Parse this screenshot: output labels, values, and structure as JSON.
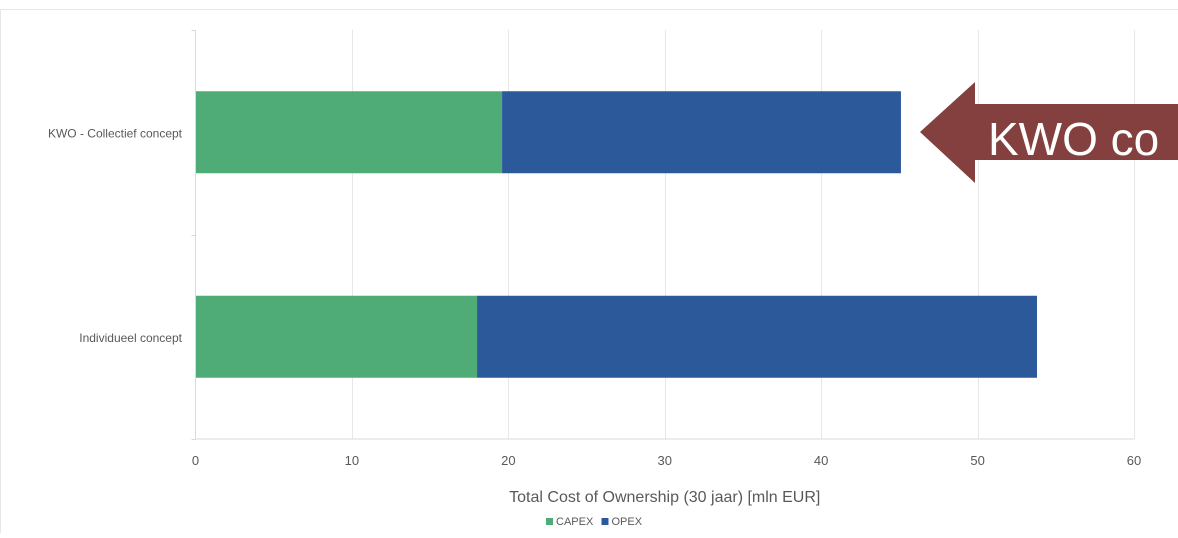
{
  "chart_data": {
    "type": "bar",
    "orientation": "horizontal",
    "stacked": true,
    "categories": [
      "KWO - Collectief concept",
      "Individueel concept"
    ],
    "series": [
      {
        "name": "CAPEX",
        "values": [
          19.6,
          18.0
        ],
        "color": "#4fac76"
      },
      {
        "name": "OPEX",
        "values": [
          25.5,
          35.8
        ],
        "color": "#2c5999"
      }
    ],
    "xlabel": "Total Cost of Ownership (30 jaar)  [mln EUR]",
    "xlim": [
      0,
      60
    ],
    "xticks": [
      0,
      10,
      20,
      30,
      40,
      50,
      60
    ],
    "grid": true,
    "legend": "bottom-center",
    "annotation": {
      "text": "KWO co",
      "color": "#84403e",
      "points_to": "KWO - Collectief concept"
    }
  }
}
